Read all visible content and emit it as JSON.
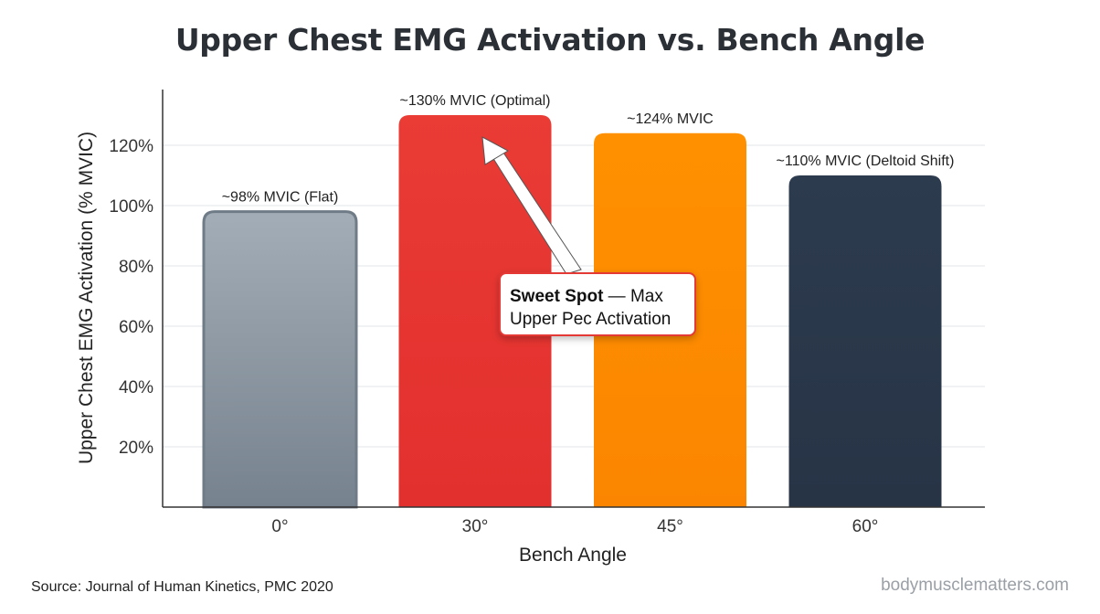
{
  "chart_data": {
    "type": "bar",
    "title": "Upper Chest EMG Activation vs. Bench Angle",
    "xlabel": "Bench Angle",
    "ylabel": "Upper Chest EMG Activation (% MVIC)",
    "categories": [
      "0°",
      "30°",
      "45°",
      "60°"
    ],
    "values": [
      98,
      130,
      124,
      110
    ],
    "data_labels": [
      "~98% MVIC (Flat)",
      "~130% MVIC (Optimal)",
      "~124% MVIC",
      "~110% MVIC (Deltoid Shift)"
    ],
    "ylim": [
      0,
      135
    ],
    "yticks": [
      20,
      40,
      60,
      80,
      100,
      120
    ],
    "ytick_labels": [
      "20%",
      "40%",
      "60%",
      "80%",
      "100%",
      "120%"
    ],
    "grid": true,
    "colors": [
      "#8e99a4",
      "#e53935",
      "#fb8c00",
      "#2b3a4e"
    ],
    "annotation": {
      "bold": "Sweet Spot",
      "rest": " — Max Upper Pec Activation",
      "target_category": "30°"
    }
  },
  "footer": {
    "source": "Source: Journal of Human Kinetics, PMC 2020",
    "watermark": "bodymusclematters.com"
  }
}
